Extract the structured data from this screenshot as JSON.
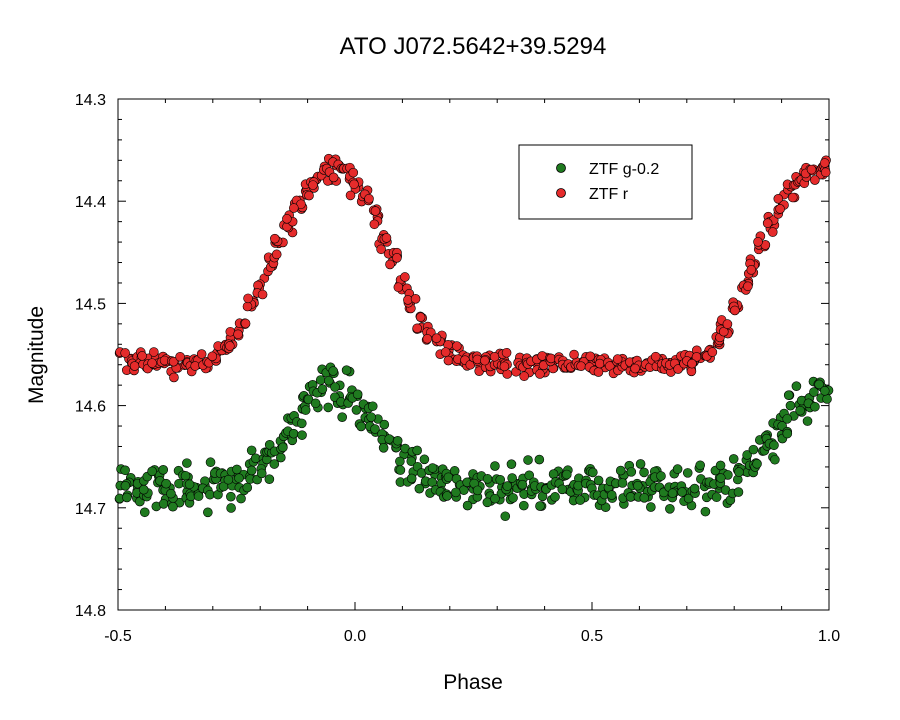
{
  "chart_data": {
    "type": "scatter",
    "title": "ATO J072.5642+39.5294",
    "xlabel": "Phase",
    "ylabel": "Magnitude",
    "xlim": [
      -0.5,
      1.0
    ],
    "ylim": [
      14.3,
      14.8
    ],
    "y_inverted": true,
    "x_ticks": [
      -0.5,
      0.0,
      0.5,
      1.0
    ],
    "x_tick_labels": [
      "-0.5",
      "0.0",
      "0.5",
      "1.0"
    ],
    "y_ticks": [
      14.3,
      14.4,
      14.5,
      14.6,
      14.7,
      14.8
    ],
    "y_tick_labels": [
      "14.3",
      "14.4",
      "14.5",
      "14.6",
      "14.7",
      "14.8"
    ],
    "grid": false,
    "legend_position": "top-right",
    "series": [
      {
        "name": "ZTF g-0.2",
        "color": "#1f7a1f",
        "x": [
          -0.5,
          -0.48,
          -0.46,
          -0.44,
          -0.42,
          -0.4,
          -0.38,
          -0.36,
          -0.34,
          -0.32,
          -0.3,
          -0.28,
          -0.26,
          -0.24,
          -0.22,
          -0.2,
          -0.18,
          -0.16,
          -0.14,
          -0.12,
          -0.1,
          -0.08,
          -0.06,
          -0.04,
          -0.02,
          0.0,
          0.02,
          0.04,
          0.06,
          0.08,
          0.1,
          0.12,
          0.14,
          0.16,
          0.18,
          0.2,
          0.22,
          0.24,
          0.26,
          0.28,
          0.3,
          0.32,
          0.34,
          0.36,
          0.38,
          0.4,
          0.42,
          0.44,
          0.46,
          0.48,
          0.5,
          0.52,
          0.54,
          0.56,
          0.58,
          0.6,
          0.62,
          0.64,
          0.66,
          0.68,
          0.7,
          0.72,
          0.74,
          0.76,
          0.78,
          0.8,
          0.82,
          0.84,
          0.86,
          0.88,
          0.9,
          0.92,
          0.94,
          0.96,
          0.98,
          1.0
        ],
        "y": [
          14.68,
          14.68,
          14.68,
          14.68,
          14.68,
          14.68,
          14.68,
          14.68,
          14.68,
          14.68,
          14.68,
          14.679,
          14.677,
          14.672,
          14.666,
          14.657,
          14.647,
          14.635,
          14.623,
          14.611,
          14.6,
          14.592,
          14.587,
          14.585,
          14.589,
          14.596,
          14.605,
          14.617,
          14.629,
          14.641,
          14.652,
          14.661,
          14.668,
          14.673,
          14.677,
          14.679,
          14.68,
          14.68,
          14.68,
          14.68,
          14.68,
          14.68,
          14.68,
          14.68,
          14.68,
          14.68,
          14.68,
          14.68,
          14.68,
          14.68,
          14.68,
          14.68,
          14.68,
          14.68,
          14.68,
          14.68,
          14.68,
          14.68,
          14.68,
          14.68,
          14.68,
          14.68,
          14.68,
          14.679,
          14.675,
          14.67,
          14.662,
          14.652,
          14.64,
          14.628,
          14.616,
          14.605,
          14.596,
          14.589,
          14.585,
          14.585
        ]
      },
      {
        "name": "ZTF r",
        "color": "#e52b2b",
        "x": [
          -0.5,
          -0.48,
          -0.46,
          -0.44,
          -0.42,
          -0.4,
          -0.38,
          -0.36,
          -0.34,
          -0.32,
          -0.3,
          -0.28,
          -0.26,
          -0.24,
          -0.22,
          -0.2,
          -0.18,
          -0.16,
          -0.14,
          -0.12,
          -0.1,
          -0.08,
          -0.06,
          -0.04,
          -0.02,
          0.0,
          0.02,
          0.04,
          0.06,
          0.08,
          0.1,
          0.12,
          0.14,
          0.16,
          0.18,
          0.2,
          0.22,
          0.24,
          0.26,
          0.28,
          0.3,
          0.32,
          0.34,
          0.36,
          0.38,
          0.4,
          0.42,
          0.44,
          0.46,
          0.48,
          0.5,
          0.52,
          0.54,
          0.56,
          0.58,
          0.6,
          0.62,
          0.64,
          0.66,
          0.68,
          0.7,
          0.72,
          0.74,
          0.76,
          0.78,
          0.8,
          0.82,
          0.84,
          0.86,
          0.88,
          0.9,
          0.92,
          0.94,
          0.96,
          0.98,
          1.0
        ],
        "y": [
          14.55,
          14.553,
          14.555,
          14.556,
          14.558,
          14.559,
          14.56,
          14.56,
          14.56,
          14.559,
          14.555,
          14.548,
          14.537,
          14.522,
          14.504,
          14.484,
          14.462,
          14.441,
          14.421,
          14.403,
          14.388,
          14.377,
          14.37,
          14.368,
          14.372,
          14.382,
          14.397,
          14.415,
          14.436,
          14.458,
          14.48,
          14.5,
          14.518,
          14.531,
          14.541,
          14.547,
          14.551,
          14.554,
          14.556,
          14.558,
          14.559,
          14.56,
          14.56,
          14.56,
          14.56,
          14.56,
          14.56,
          14.56,
          14.56,
          14.56,
          14.56,
          14.56,
          14.56,
          14.56,
          14.56,
          14.56,
          14.56,
          14.56,
          14.56,
          14.56,
          14.559,
          14.556,
          14.549,
          14.538,
          14.523,
          14.505,
          14.485,
          14.463,
          14.442,
          14.422,
          14.404,
          14.389,
          14.378,
          14.371,
          14.368,
          14.368
        ]
      }
    ]
  }
}
